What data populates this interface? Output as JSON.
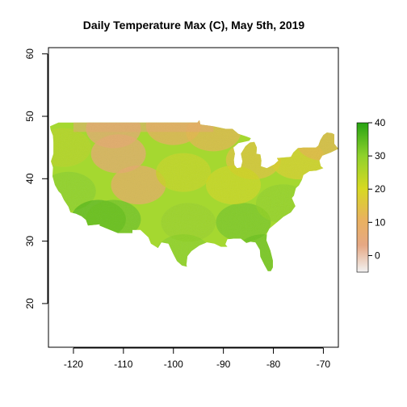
{
  "chart_data": {
    "type": "heatmap",
    "title": "Daily Temperature Max (C), May 5th, 2019",
    "xlabel": "",
    "ylabel": "",
    "xlim": [
      -125,
      -67
    ],
    "ylim": [
      13,
      61
    ],
    "x_ticks": [
      -120,
      -110,
      -100,
      -90,
      -80,
      -70
    ],
    "x_tick_labels": [
      "-120",
      "-110",
      "-100",
      "-90",
      "-80",
      "-70"
    ],
    "y_ticks": [
      20,
      30,
      40,
      50,
      60
    ],
    "y_tick_labels": [
      "20",
      "30",
      "40",
      "50",
      "60"
    ],
    "colorbar": {
      "range": [
        -5,
        40
      ],
      "ticks": [
        0,
        10,
        20,
        30,
        40
      ],
      "tick_labels": [
        "0",
        "10",
        "20",
        "30",
        "40"
      ],
      "colors": [
        "#f2f2f2",
        "#e6a884",
        "#e9c263",
        "#d7d922",
        "#8fd12b",
        "#27a313"
      ]
    },
    "region": "Contiguous United States",
    "regional_temperature_estimates": [
      {
        "lon": -112,
        "lat": 48,
        "value": 5
      },
      {
        "lon": -100,
        "lat": 48.5,
        "value": 10
      },
      {
        "lon": -92,
        "lat": 47.5,
        "value": 12
      },
      {
        "lon": -84,
        "lat": 43,
        "value": 15
      },
      {
        "lon": -75,
        "lat": 43,
        "value": 18
      },
      {
        "lon": -70,
        "lat": 46,
        "value": 12
      },
      {
        "lon": -107,
        "lat": 39,
        "value": 8
      },
      {
        "lon": -111,
        "lat": 44,
        "value": 6
      },
      {
        "lon": -121,
        "lat": 38,
        "value": 30
      },
      {
        "lon": -115,
        "lat": 33.5,
        "value": 35
      },
      {
        "lon": -112,
        "lat": 33.5,
        "value": 33
      },
      {
        "lon": -98,
        "lat": 41,
        "value": 22
      },
      {
        "lon": -97,
        "lat": 33,
        "value": 28
      },
      {
        "lon": -98,
        "lat": 28,
        "value": 30
      },
      {
        "lon": -86,
        "lat": 33,
        "value": 32
      },
      {
        "lon": -82,
        "lat": 28,
        "value": 33
      },
      {
        "lon": -88,
        "lat": 39,
        "value": 21
      },
      {
        "lon": -78,
        "lat": 36,
        "value": 29
      },
      {
        "lon": -122,
        "lat": 45,
        "value": 24
      }
    ]
  }
}
